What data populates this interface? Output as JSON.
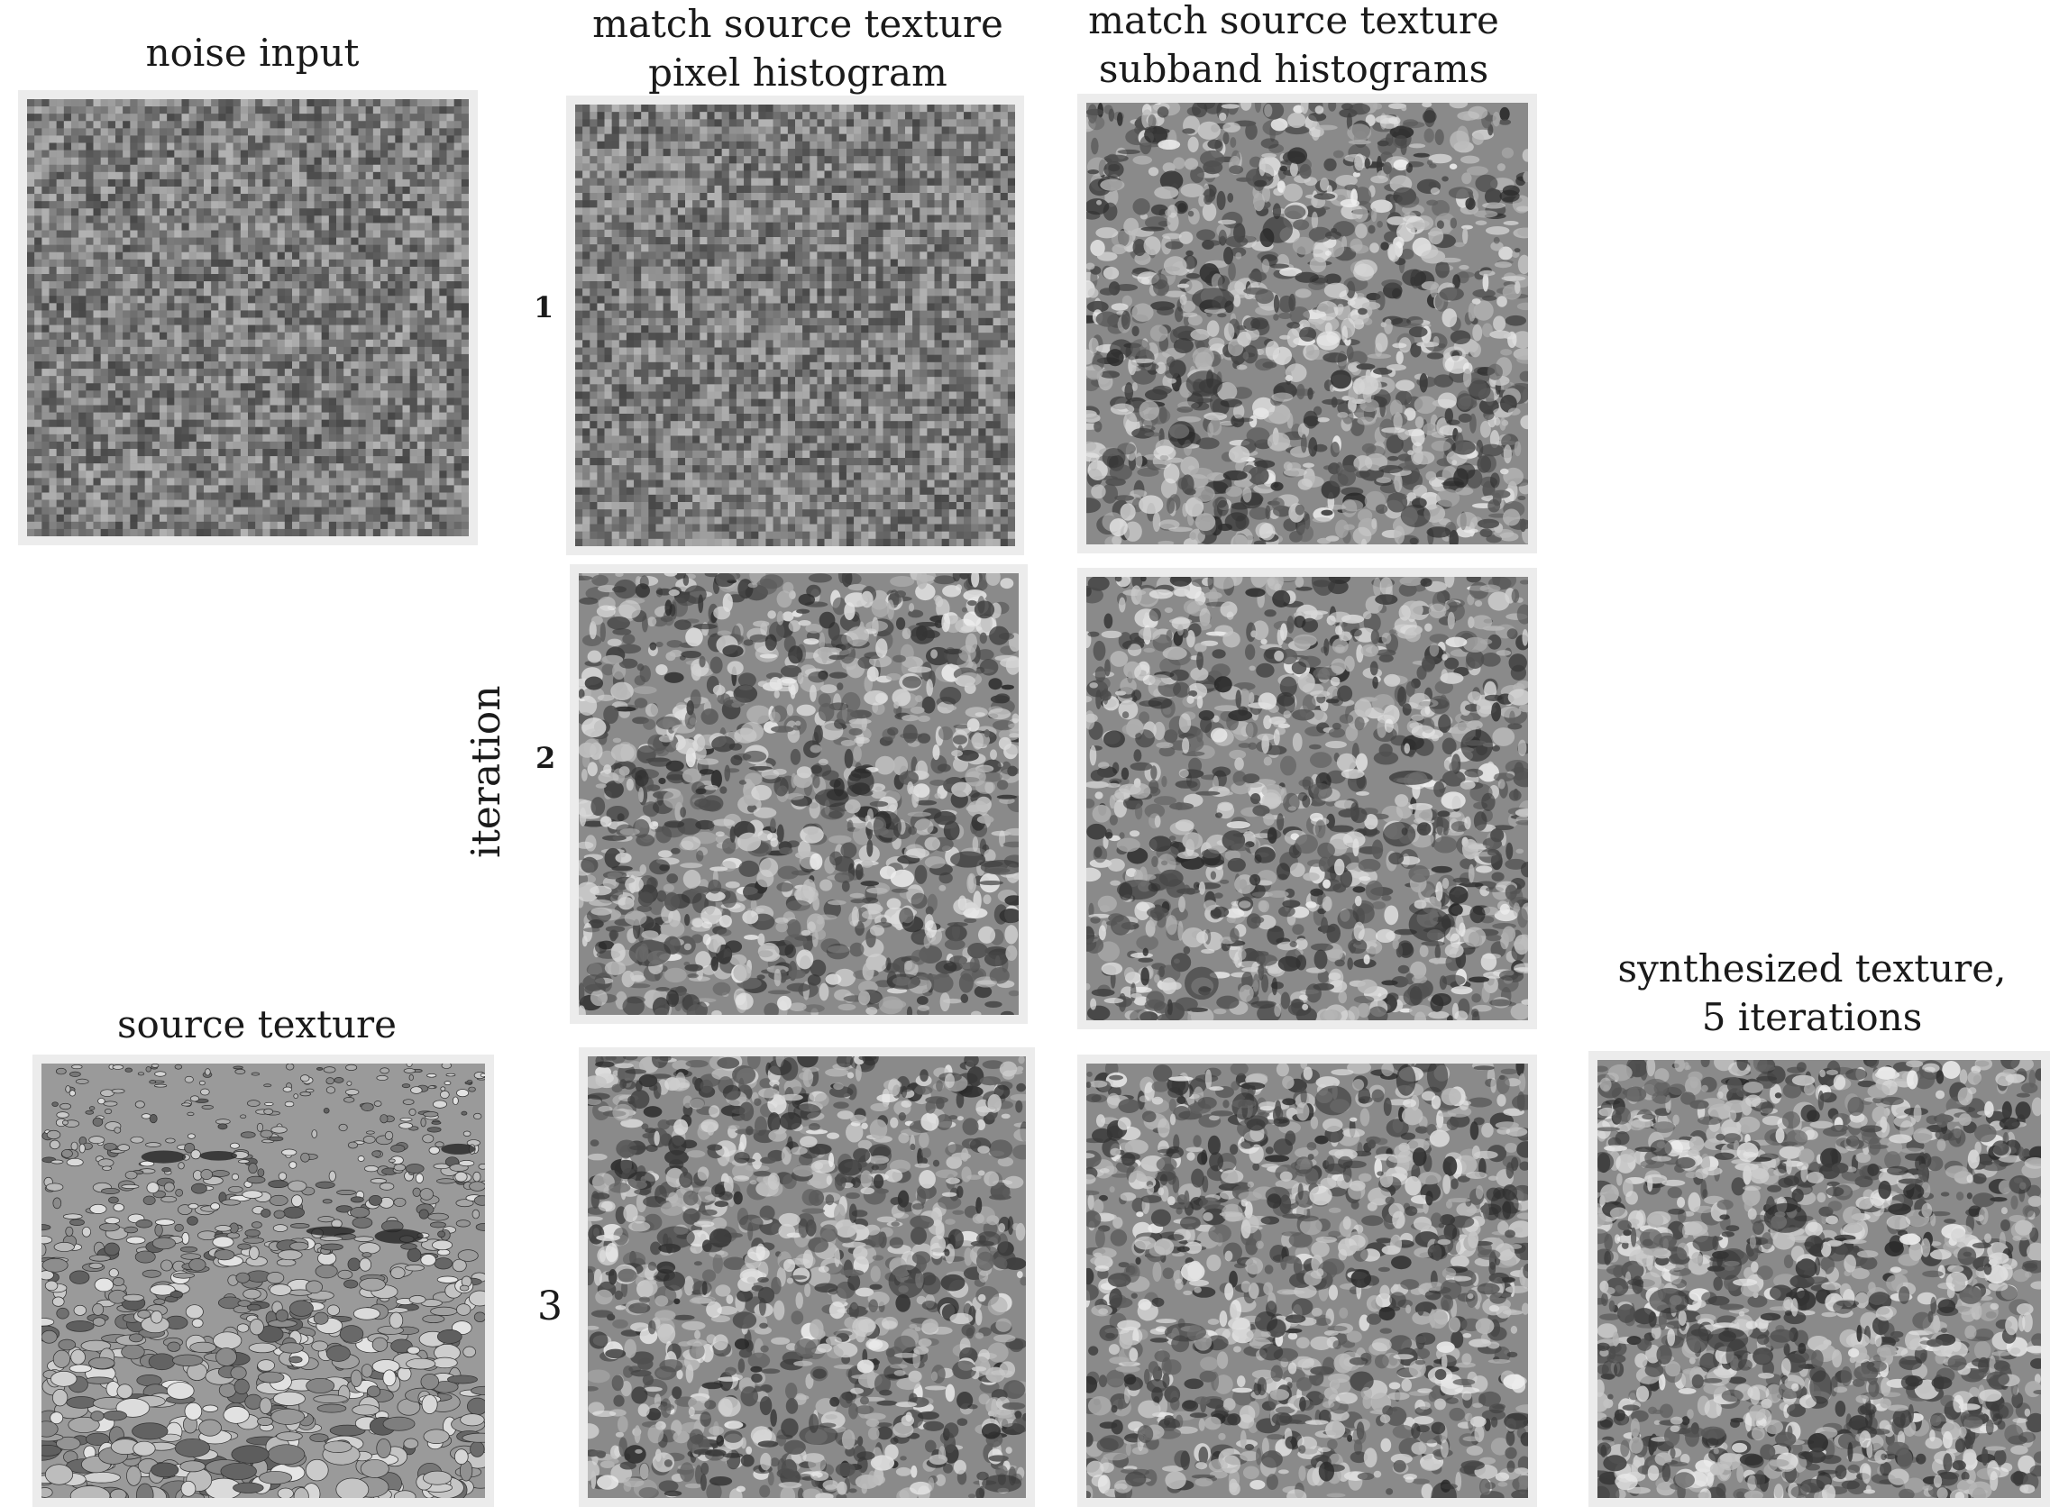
{
  "title_noise": "noise input",
  "title_pixel": "match source texture\npixel histogram",
  "title_subband": "match source texture\nsubband histograms",
  "title_source": "source texture",
  "title_synth": "synthesized texture,\n5 iterations",
  "axis_label": "iteration",
  "iterations": [
    "1",
    "2",
    "3"
  ],
  "panels": [
    {
      "name": "noise-input-image",
      "kind": "noise"
    },
    {
      "name": "pixel-hist-iter-1-image",
      "kind": "noise"
    },
    {
      "name": "subband-hist-iter-1-image",
      "kind": "texture"
    },
    {
      "name": "pixel-hist-iter-2-image",
      "kind": "texture"
    },
    {
      "name": "subband-hist-iter-2-image",
      "kind": "texture"
    },
    {
      "name": "source-texture-image",
      "kind": "pebbles"
    },
    {
      "name": "pixel-hist-iter-3-image",
      "kind": "texture"
    },
    {
      "name": "subband-hist-iter-3-image",
      "kind": "texture"
    },
    {
      "name": "synthesized-texture-image",
      "kind": "texture-fine"
    }
  ],
  "colors": {
    "panel_border": "#ececec",
    "noise_base": "#7a7a7a",
    "texture_base": "#8a8a8a",
    "pebble_base": "#9a9a9a"
  }
}
